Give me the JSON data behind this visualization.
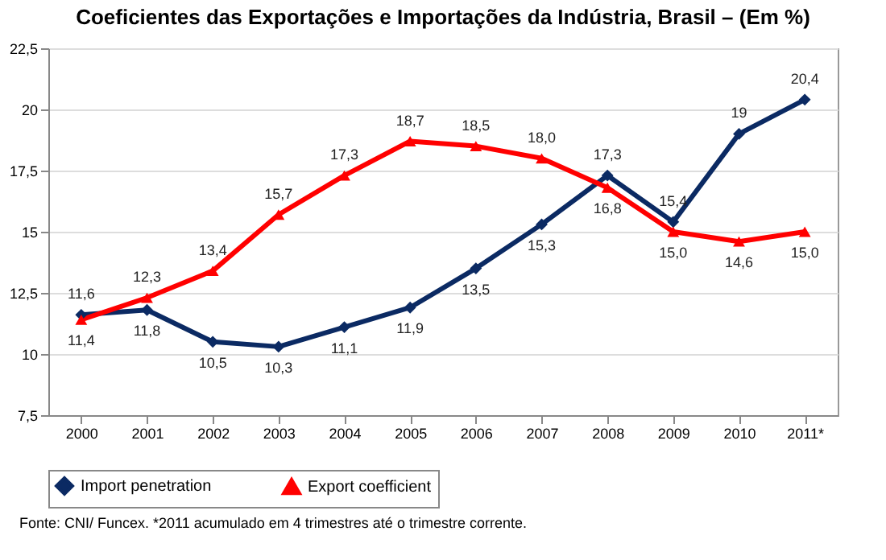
{
  "chart_data": {
    "type": "line",
    "title": "Coeficientes das Exportações e Importações da Indústria, Brasil – (Em %)",
    "categories": [
      "2000",
      "2001",
      "2002",
      "2003",
      "2004",
      "2005",
      "2006",
      "2007",
      "2008",
      "2009",
      "2010",
      "2011*"
    ],
    "series": [
      {
        "name": "Import penetration",
        "color": "#0b2a63",
        "marker": "diamond",
        "values": [
          11.6,
          11.8,
          10.5,
          10.3,
          11.1,
          11.9,
          13.5,
          15.3,
          17.3,
          15.4,
          19,
          20.4
        ],
        "value_labels": [
          "11,6",
          "11,8",
          "10,5",
          "10,3",
          "11,1",
          "11,9",
          "13,5",
          "15,3",
          "17,3",
          "15,4",
          "19",
          "20,4"
        ]
      },
      {
        "name": "Export coefficient",
        "color": "#ff0000",
        "marker": "triangle",
        "values": [
          11.4,
          12.3,
          13.4,
          15.7,
          17.3,
          18.7,
          18.5,
          18.0,
          16.8,
          15.0,
          14.6,
          15.0
        ],
        "value_labels": [
          "11,4",
          "12,3",
          "13,4",
          "15,7",
          "17,3",
          "18,7",
          "18,5",
          "18,0",
          "16,8",
          "15,0",
          "14,6",
          "15,0"
        ]
      }
    ],
    "ylim": [
      7.5,
      22.5
    ],
    "yticks": [
      {
        "value": 7.5,
        "label": "7,5"
      },
      {
        "value": 10,
        "label": "10"
      },
      {
        "value": 12.5,
        "label": "12,5"
      },
      {
        "value": 15,
        "label": "15"
      },
      {
        "value": 17.5,
        "label": "17,5"
      },
      {
        "value": 20,
        "label": "20"
      },
      {
        "value": 22.5,
        "label": "22,5"
      }
    ],
    "grid": "y",
    "legend": "bottom",
    "line_style": "solid",
    "annotations": [
      "Fonte: CNI/ Funcex. *2011 acumulado em 4 trimestres até o trimestre corrente."
    ]
  }
}
